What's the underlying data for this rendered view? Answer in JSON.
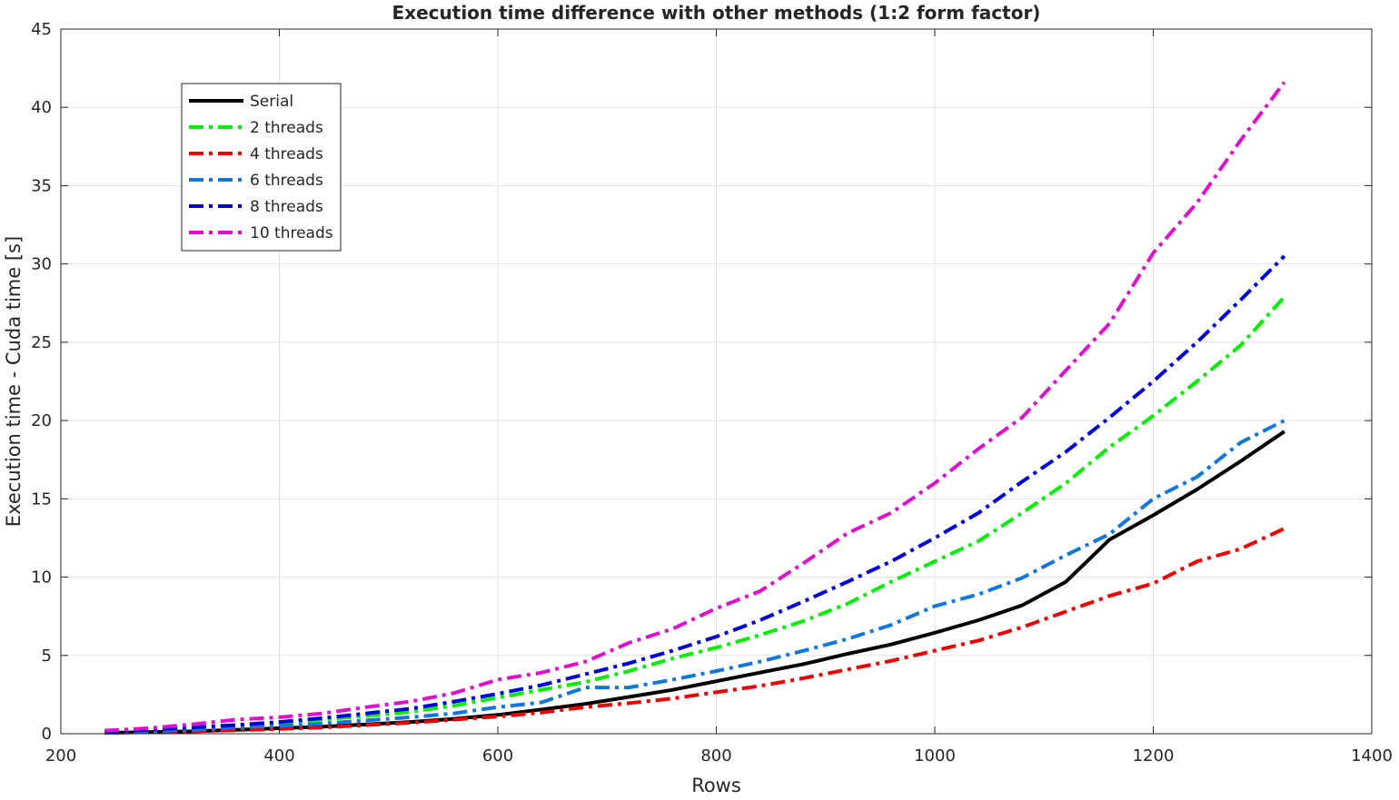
{
  "chart_data": {
    "type": "line",
    "title": "Execution time difference with other methods (1:2 form factor)",
    "xlabel": "Rows",
    "ylabel": "Execution time - Cuda time [s]",
    "xlim": [
      200,
      1400
    ],
    "ylim": [
      0,
      45
    ],
    "xticks": [
      200,
      400,
      600,
      800,
      1000,
      1200,
      1400
    ],
    "yticks": [
      0,
      5,
      10,
      15,
      20,
      25,
      30,
      35,
      40,
      45
    ],
    "xtick_labels": [
      "200",
      "400",
      "600",
      "800",
      "1000",
      "1200",
      "1400"
    ],
    "ytick_labels": [
      "0",
      "5",
      "10",
      "15",
      "20",
      "25",
      "30",
      "35",
      "40",
      "45"
    ],
    "grid": true,
    "legend_position": "top-left",
    "x": [
      240,
      280,
      320,
      360,
      400,
      440,
      480,
      520,
      560,
      600,
      640,
      680,
      720,
      760,
      800,
      840,
      880,
      920,
      960,
      1000,
      1040,
      1080,
      1120,
      1160,
      1200,
      1240,
      1280,
      1320
    ],
    "series": [
      {
        "name": "Serial",
        "color": "#000000",
        "dash": "solid",
        "values": [
          0.05,
          0.1,
          0.15,
          0.25,
          0.35,
          0.45,
          0.6,
          0.75,
          0.95,
          1.2,
          1.55,
          1.9,
          2.35,
          2.8,
          3.35,
          3.9,
          4.45,
          5.1,
          5.7,
          6.45,
          7.25,
          8.2,
          9.7,
          12.4,
          13.95,
          15.6,
          17.4,
          19.3
        ]
      },
      {
        "name": "2 threads",
        "color": "#00ee00",
        "dash": "dashdot",
        "values": [
          0.08,
          0.2,
          0.35,
          0.5,
          0.7,
          0.9,
          1.15,
          1.4,
          1.8,
          2.3,
          2.8,
          3.3,
          4.0,
          4.8,
          5.5,
          6.3,
          7.2,
          8.3,
          9.7,
          11.0,
          12.3,
          14.1,
          16.0,
          18.3,
          20.3,
          22.5,
          24.8,
          27.9
        ]
      },
      {
        "name": "4 threads",
        "color": "#ee0000",
        "dash": "dashdot",
        "values": [
          0.05,
          0.1,
          0.15,
          0.22,
          0.3,
          0.4,
          0.55,
          0.7,
          0.9,
          1.1,
          1.35,
          1.7,
          1.95,
          2.25,
          2.65,
          3.05,
          3.55,
          4.1,
          4.65,
          5.3,
          5.95,
          6.8,
          7.8,
          8.8,
          9.6,
          11.0,
          11.8,
          13.1
        ]
      },
      {
        "name": "6 threads",
        "color": "#1177dd",
        "dash": "dashdot",
        "values": [
          0.05,
          0.15,
          0.25,
          0.4,
          0.5,
          0.65,
          0.85,
          1.05,
          1.3,
          1.7,
          2.0,
          2.95,
          2.95,
          3.45,
          4.0,
          4.6,
          5.3,
          6.05,
          6.95,
          8.15,
          8.9,
          9.95,
          11.4,
          12.75,
          15.0,
          16.4,
          18.6,
          20.0
        ]
      },
      {
        "name": "8 threads",
        "color": "#0000dd",
        "dash": "dashdot",
        "values": [
          0.1,
          0.25,
          0.4,
          0.55,
          0.75,
          1.0,
          1.3,
          1.6,
          2.05,
          2.55,
          3.1,
          3.8,
          4.5,
          5.3,
          6.2,
          7.25,
          8.45,
          9.7,
          11.0,
          12.5,
          14.1,
          16.1,
          18.0,
          20.2,
          22.5,
          25.0,
          27.7,
          30.5
        ]
      },
      {
        "name": "10 threads",
        "color": "#dd11cc",
        "dash": "dashdot",
        "values": [
          0.2,
          0.35,
          0.6,
          0.9,
          1.05,
          1.3,
          1.7,
          2.05,
          2.6,
          3.45,
          3.9,
          4.6,
          5.8,
          6.7,
          8.0,
          9.1,
          10.9,
          12.8,
          14.1,
          16.0,
          18.2,
          20.2,
          23.2,
          26.2,
          30.7,
          33.9,
          37.9,
          41.6
        ]
      }
    ]
  }
}
